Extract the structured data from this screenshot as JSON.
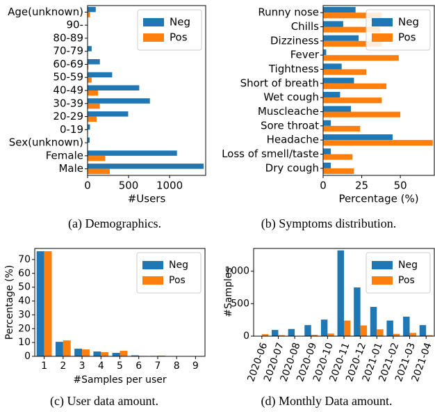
{
  "chart_data": [
    {
      "type": "barh",
      "caption": "(a) Demographics.",
      "xlabel": "#Users",
      "categories": [
        "Age(unknown)",
        "90-",
        "80-89",
        "70-79",
        "60-69",
        "50-59",
        "40-49",
        "30-39",
        "20-29",
        "0-19",
        "Sex(unknown)",
        "Female",
        "Male"
      ],
      "series": [
        {
          "name": "Neg",
          "color": "#1f77b4",
          "values": [
            100,
            0,
            0,
            50,
            150,
            300,
            630,
            760,
            495,
            30,
            25,
            1090,
            1415
          ]
        },
        {
          "name": "Pos",
          "color": "#ff7f0e",
          "values": [
            30,
            0,
            0,
            5,
            10,
            50,
            127,
            150,
            110,
            5,
            0,
            215,
            271
          ]
        }
      ],
      "xlim": [
        0,
        1440
      ],
      "xticks": [
        0,
        500,
        1000
      ],
      "legend": "upper right"
    },
    {
      "type": "barh",
      "caption": "(b) Symptoms distribution.",
      "xlabel": "Percentage (%)",
      "categories": [
        "Runny nose",
        "Chills",
        "Dizziness",
        "Fever",
        "Tightness",
        "Short of breath",
        "Wet cough",
        "Muscleache",
        "Sore throat",
        "Headache",
        "Loss of smell/taste",
        "Dry cough"
      ],
      "series": [
        {
          "name": "Neg",
          "color": "#1f77b4",
          "values": [
            21,
            13,
            23,
            2,
            12,
            20,
            11,
            18,
            5,
            45,
            5,
            5
          ]
        },
        {
          "name": "Pos",
          "color": "#ff7f0e",
          "values": [
            38,
            37,
            38,
            49,
            28,
            41,
            38,
            50,
            24,
            71,
            19,
            20
          ]
        }
      ],
      "xlim": [
        0,
        72
      ],
      "xticks": [
        0,
        25,
        50
      ],
      "legend": "upper right"
    },
    {
      "type": "bar",
      "caption": "(c) User data amount.",
      "xlabel": "#Samples per user",
      "ylabel": "Percentage (%)",
      "categories": [
        "1",
        "2",
        "3",
        "4",
        "5",
        "6",
        "7",
        "8",
        "9"
      ],
      "series": [
        {
          "name": "Neg",
          "color": "#1f77b4",
          "values": [
            76,
            10.5,
            5.5,
            3.5,
            2.5,
            0.7,
            0.3,
            0.2,
            0.1
          ]
        },
        {
          "name": "Pos",
          "color": "#ff7f0e",
          "values": [
            76,
            11.5,
            5,
            3,
            4,
            0.3,
            0.5,
            0.1,
            0.1
          ]
        }
      ],
      "ylim": [
        0,
        78
      ],
      "yticks": [
        0,
        10,
        20,
        30,
        40,
        50,
        60,
        70
      ],
      "legend": "upper right"
    },
    {
      "type": "bar",
      "caption": "(d) Monthly Data amount.",
      "ylabel": "#Samples",
      "categories": [
        "2020-06",
        "2020-07",
        "2020-08",
        "2020-09",
        "2020-10",
        "2020-11",
        "2020-12",
        "2021-01",
        "2021-02",
        "2021-03",
        "2021-04"
      ],
      "series": [
        {
          "name": "Neg",
          "color": "#1f77b4",
          "values": [
            5,
            95,
            110,
            170,
            255,
            1320,
            750,
            450,
            240,
            300,
            170
          ]
        },
        {
          "name": "Pos",
          "color": "#ff7f0e",
          "values": [
            30,
            15,
            5,
            20,
            40,
            240,
            165,
            105,
            35,
            50,
            15
          ]
        }
      ],
      "ylim": [
        0,
        1350
      ],
      "yticks": [
        0,
        500,
        1000
      ],
      "legend": "upper right"
    }
  ]
}
